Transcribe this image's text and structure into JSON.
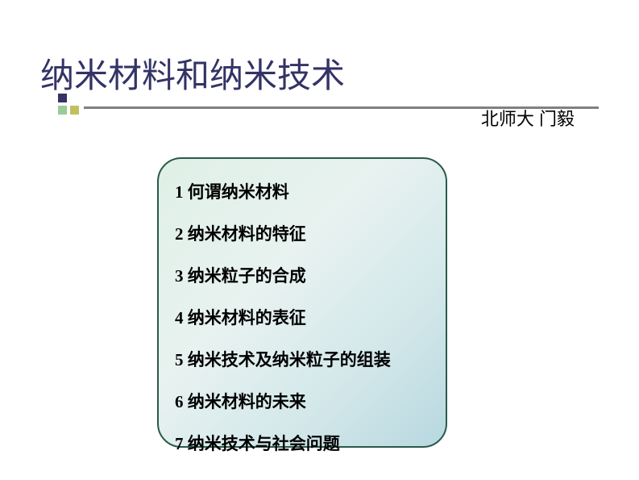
{
  "header": {
    "title": "纳米材料和纳米技术",
    "title_color": "#333366",
    "subtitle": "北师大 门毅"
  },
  "decor": {
    "hr_color": "#808080",
    "square1_color": "#333366",
    "square2_color": "#c0c060",
    "square3_color": "#99cc99"
  },
  "content_box": {
    "border_color": "#2a5a4a",
    "bg_gradient_start": "#dff0e6",
    "bg_gradient_end": "#b8d8e0",
    "border_radius": 30
  },
  "toc": {
    "items": [
      {
        "num": "1",
        "text": "何谓纳米材料"
      },
      {
        "num": "2",
        "text": "纳米材料的特征"
      },
      {
        "num": "3",
        "text": "纳米粒子的合成"
      },
      {
        "num": "4",
        "text": "纳米材料的表征"
      },
      {
        "num": "5",
        "text": "纳米技术及纳米粒子的组装"
      },
      {
        "num": "6",
        "text": "纳米材料的未来"
      },
      {
        "num": "7",
        "text": "纳米技术与社会问题"
      }
    ]
  }
}
